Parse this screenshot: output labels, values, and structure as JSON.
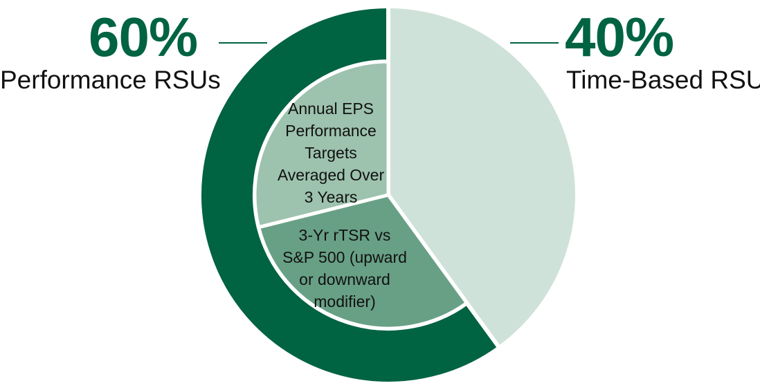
{
  "colors": {
    "dark_green": "#006341",
    "light_green": "#cfe2d9",
    "mid_green": "#9dc2ae",
    "medium_green": "#68a086"
  },
  "chart_data": {
    "type": "pie",
    "outer_ring": [
      {
        "label": "Performance RSUs",
        "value": 60,
        "value_label": "60%"
      },
      {
        "label": "Time-Based RSUs",
        "value": 40,
        "value_label": "40%"
      }
    ],
    "inner_breakdown": [
      {
        "parent": "Performance RSUs",
        "lines": [
          "Annual EPS",
          "Performance",
          "Targets",
          "Averaged Over",
          "3 Years"
        ]
      },
      {
        "parent": "Performance RSUs",
        "lines": [
          "3-Yr rTSR vs",
          "S&P 500 (upward",
          "or downward",
          "modifier)"
        ]
      }
    ]
  }
}
